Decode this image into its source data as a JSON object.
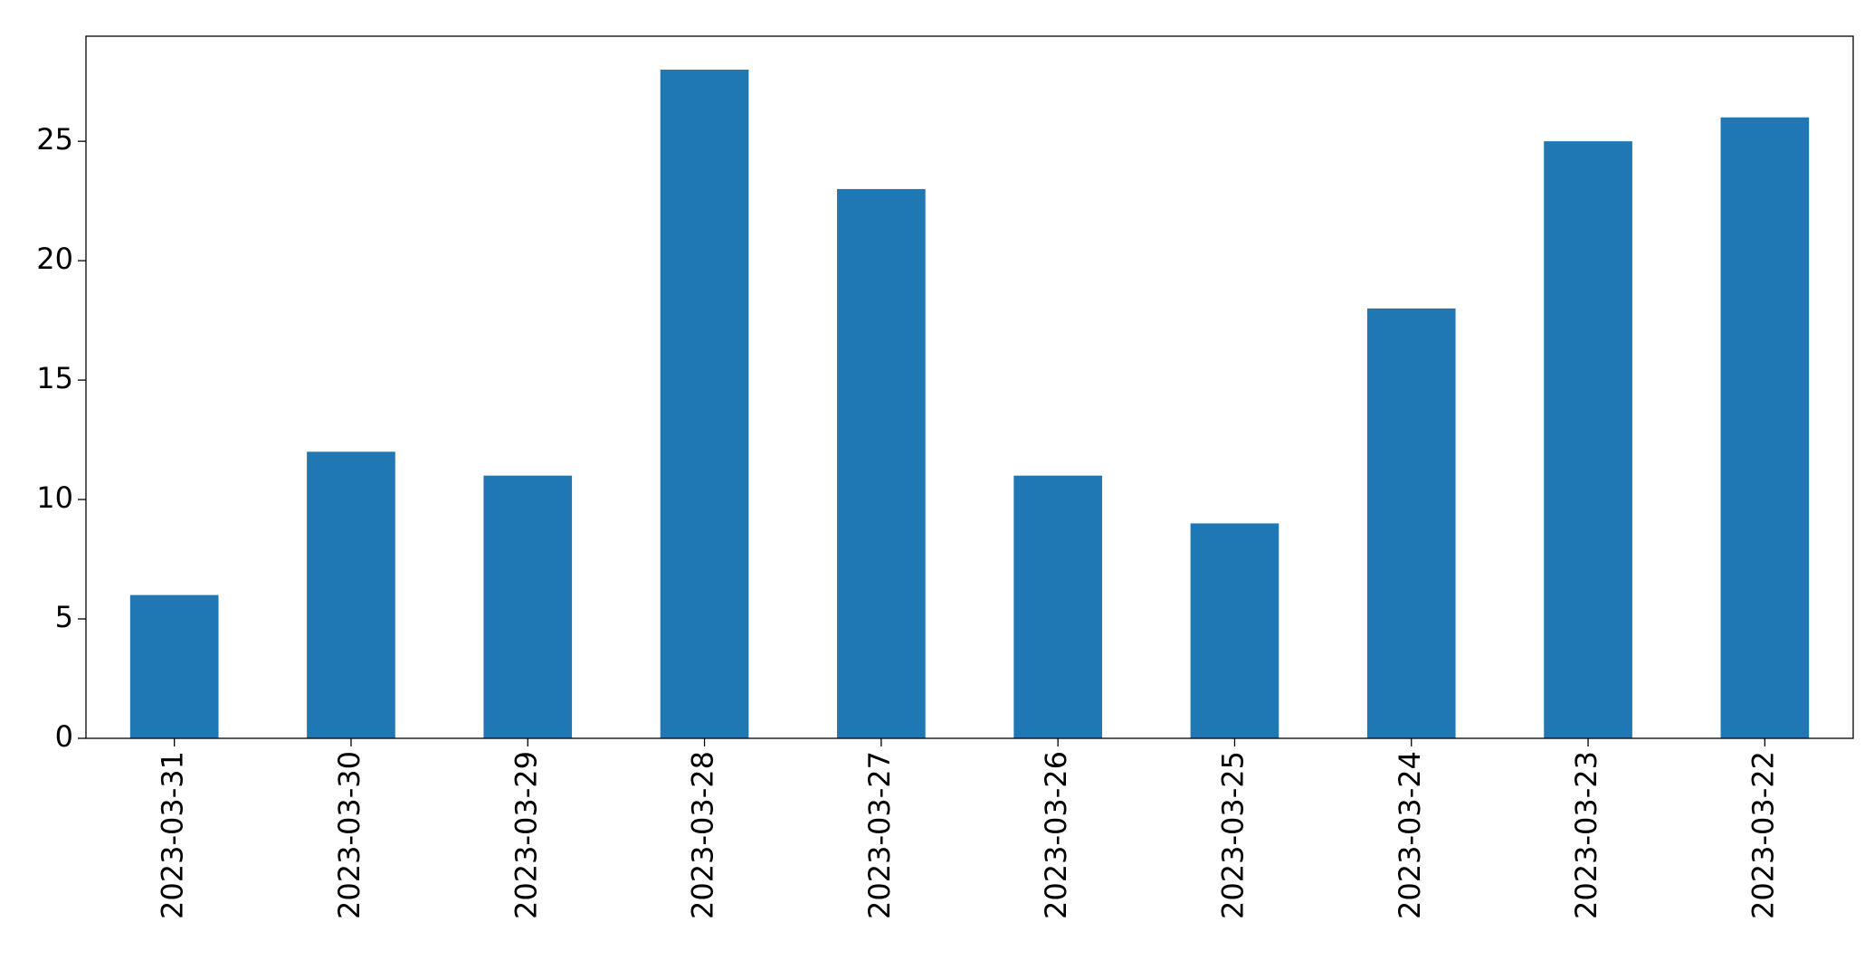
{
  "chart_data": {
    "type": "bar",
    "categories": [
      "2023-03-31",
      "2023-03-30",
      "2023-03-29",
      "2023-03-28",
      "2023-03-27",
      "2023-03-26",
      "2023-03-25",
      "2023-03-24",
      "2023-03-23",
      "2023-03-22"
    ],
    "values": [
      6,
      12,
      11,
      28,
      23,
      11,
      9,
      18,
      25,
      26
    ],
    "color": "#1f77b4",
    "ylim": [
      0,
      29.4
    ],
    "yticks": [
      0,
      5,
      10,
      15,
      20,
      25
    ],
    "grid": false
  }
}
